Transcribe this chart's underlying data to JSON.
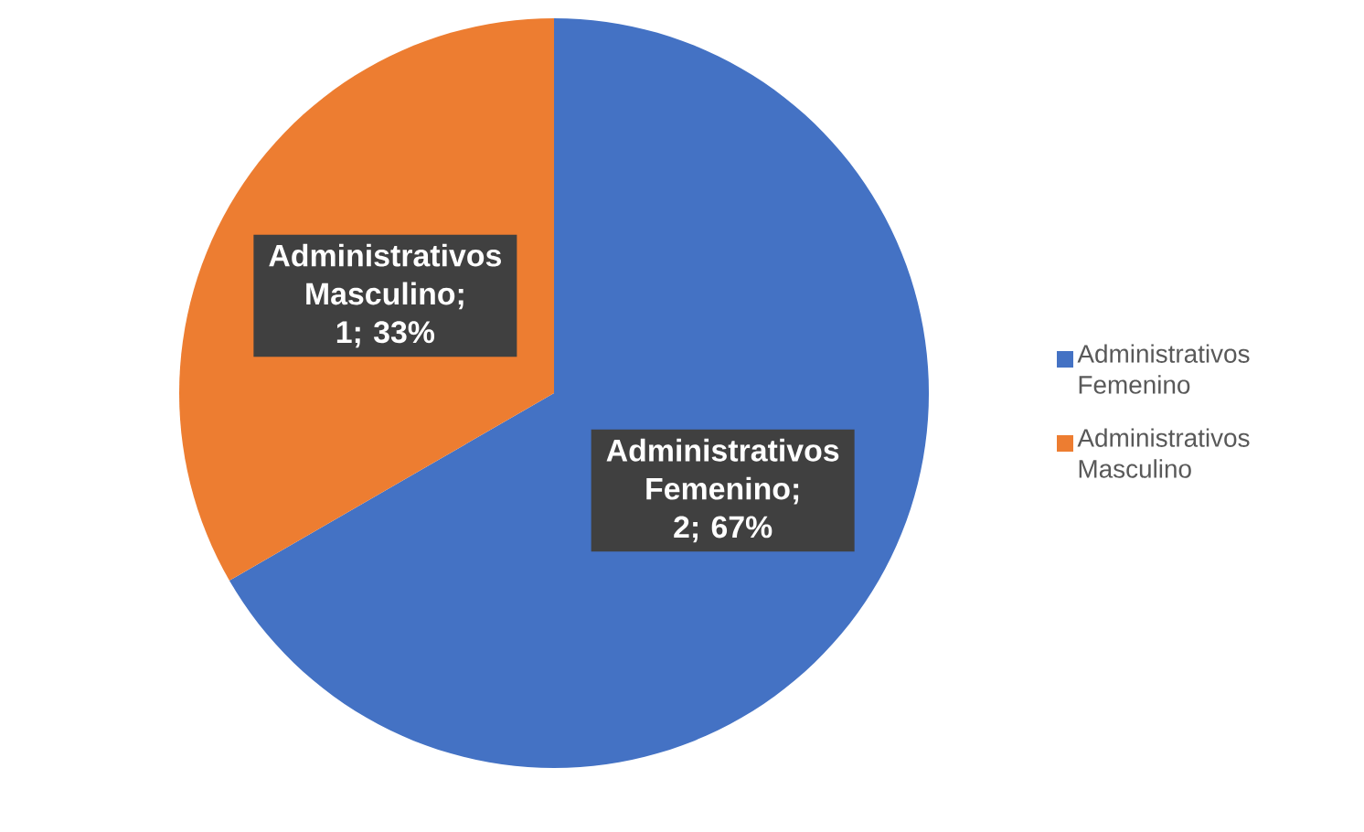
{
  "chart_data": {
    "type": "pie",
    "categories": [
      "Administrativos Femenino",
      "Administrativos Masculino"
    ],
    "values": [
      2,
      1
    ],
    "colors": [
      "#4472c4",
      "#ed7d31"
    ],
    "value_labels": [
      "Administrativos Femenino; 2; 67%",
      "Administrativos Masculino; 1; 33%"
    ],
    "legend": "right"
  }
}
